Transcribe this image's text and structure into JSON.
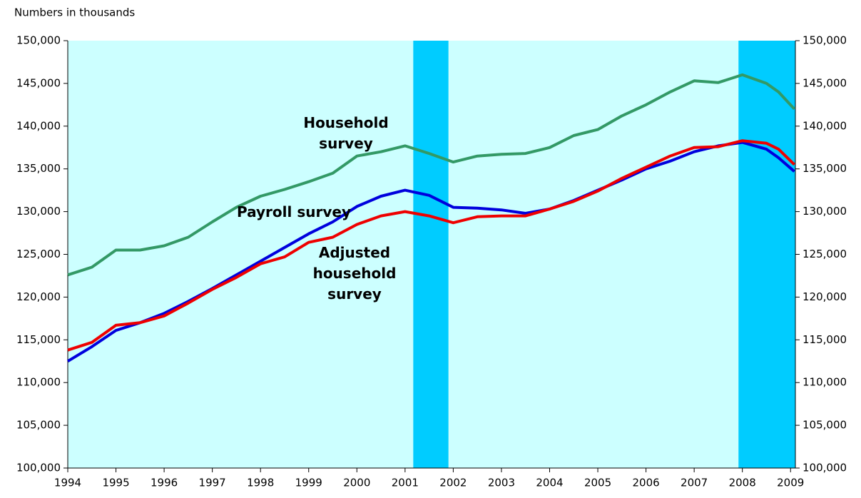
{
  "chart_data": {
    "type": "line",
    "axis_note": "Numbers in thousands",
    "x": [
      1994.0,
      1994.5,
      1995.0,
      1995.5,
      1996.0,
      1996.5,
      1997.0,
      1997.5,
      1998.0,
      1998.5,
      1999.0,
      1999.5,
      2000.0,
      2000.5,
      2001.0,
      2001.5,
      2002.0,
      2002.5,
      2003.0,
      2003.5,
      2004.0,
      2004.5,
      2005.0,
      2005.5,
      2006.0,
      2006.5,
      2007.0,
      2007.5,
      2008.0,
      2008.5,
      2008.75,
      2009.08
    ],
    "series": [
      {
        "name": "Household survey",
        "color": "#339966",
        "values": [
          122600,
          123500,
          125500,
          125500,
          126000,
          127000,
          128800,
          130500,
          131800,
          132600,
          133500,
          134500,
          136500,
          137000,
          137700,
          136800,
          135800,
          136500,
          136700,
          136800,
          137500,
          138900,
          139600,
          141200,
          142500,
          144000,
          145300,
          145100,
          146000,
          145000,
          144000,
          142000
        ]
      },
      {
        "name": "Payroll survey",
        "color": "#0000dd",
        "values": [
          112500,
          114200,
          116100,
          117000,
          118100,
          119500,
          121000,
          122600,
          124200,
          125800,
          127400,
          128800,
          130600,
          131800,
          132500,
          131900,
          130500,
          130400,
          130200,
          129800,
          130300,
          131300,
          132500,
          133700,
          135000,
          135900,
          137000,
          137700,
          138100,
          137300,
          136300,
          134700
        ]
      },
      {
        "name": "Adjusted household survey",
        "color": "#ee0000",
        "values": [
          113800,
          114700,
          116700,
          117000,
          117800,
          119300,
          120900,
          122300,
          123900,
          124700,
          126400,
          127000,
          128500,
          129500,
          130000,
          129500,
          128700,
          129400,
          129500,
          129500,
          130300,
          131200,
          132400,
          133900,
          135200,
          136500,
          137500,
          137600,
          138300,
          138000,
          137300,
          135500
        ]
      }
    ],
    "annotations": [
      {
        "lines": [
          "Household",
          "survey"
        ],
        "color": "#339933"
      },
      {
        "lines": [
          "Payroll survey"
        ],
        "color": "#0000dd"
      },
      {
        "lines": [
          "Adjusted",
          "household",
          "survey"
        ],
        "color": "#ee0000"
      }
    ],
    "shaded_periods": [
      [
        2001.17,
        2001.9
      ],
      [
        2007.92,
        2009.1
      ]
    ],
    "shade_color": "#00ccff",
    "plot_background": "#ccffff",
    "xlim": [
      1994,
      2009.1
    ],
    "xticks": [
      1994,
      1995,
      1996,
      1997,
      1998,
      1999,
      2000,
      2001,
      2002,
      2003,
      2004,
      2005,
      2006,
      2007,
      2008,
      2009
    ],
    "ylim": [
      100000,
      150000
    ],
    "yticks": [
      {
        "value": 100000,
        "label": "100,000"
      },
      {
        "value": 105000,
        "label": "105,000"
      },
      {
        "value": 110000,
        "label": "110,000"
      },
      {
        "value": 115000,
        "label": "115,000"
      },
      {
        "value": 120000,
        "label": "120,000"
      },
      {
        "value": 125000,
        "label": "125,000"
      },
      {
        "value": 130000,
        "label": "130,000"
      },
      {
        "value": 135000,
        "label": "135,000"
      },
      {
        "value": 140000,
        "label": "140,000"
      },
      {
        "value": 145000,
        "label": "145,000"
      },
      {
        "value": 150000,
        "label": "150,000"
      }
    ],
    "y2lim": [
      100000,
      150000
    ],
    "y2ticks": [
      {
        "value": 100000,
        "label": "100,000"
      },
      {
        "value": 105000,
        "label": "105,000"
      },
      {
        "value": 110000,
        "label": "110,000"
      },
      {
        "value": 115000,
        "label": "115,000"
      },
      {
        "value": 120000,
        "label": "120,000"
      },
      {
        "value": 125000,
        "label": "125,000"
      },
      {
        "value": 130000,
        "label": "130,000"
      },
      {
        "value": 135000,
        "label": "135,000"
      },
      {
        "value": 140000,
        "label": "140,000"
      },
      {
        "value": 145000,
        "label": "145,000"
      },
      {
        "value": 150000,
        "label": "150,000"
      }
    ]
  }
}
